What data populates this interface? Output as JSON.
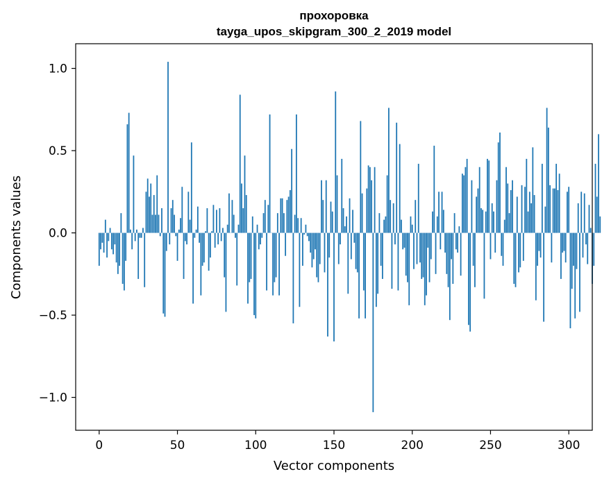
{
  "chart_data": {
    "type": "bar",
    "title_line1": "прохоровка",
    "title_line2": "tayga_upos_skipgram_300_2_2019 model",
    "xlabel": "Vector components",
    "ylabel": "Components values",
    "xlim": [
      -15,
      315
    ],
    "ylim": [
      -1.2,
      1.15
    ],
    "xticks": [
      0,
      50,
      100,
      150,
      200,
      250,
      300
    ],
    "xtick_labels": [
      "0",
      "50",
      "100",
      "150",
      "200",
      "250",
      "300"
    ],
    "yticks": [
      -1.0,
      -0.5,
      0.0,
      0.5,
      1.0
    ],
    "ytick_labels": [
      "−1.0",
      "−0.5",
      "0.0",
      "0.5",
      "1.0"
    ],
    "bar_color": "#1f77b4",
    "values": [
      -0.2,
      -0.1,
      -0.06,
      -0.12,
      0.08,
      -0.15,
      -0.05,
      0.03,
      -0.1,
      -0.13,
      -0.07,
      -0.18,
      -0.25,
      -0.2,
      0.12,
      -0.31,
      -0.35,
      -0.17,
      0.66,
      0.73,
      0.02,
      -0.1,
      0.47,
      -0.05,
      0.02,
      -0.28,
      -0.03,
      -0.03,
      0.03,
      -0.33,
      0.25,
      0.33,
      0.22,
      0.3,
      0.11,
      0.23,
      0.11,
      0.35,
      0.11,
      -0.02,
      0.15,
      -0.49,
      -0.51,
      -0.11,
      1.04,
      -0.07,
      0.15,
      0.2,
      0.11,
      -0.02,
      -0.17,
      0.02,
      0.09,
      0.28,
      -0.28,
      -0.05,
      -0.07,
      0.25,
      0.08,
      0.55,
      -0.43,
      -0.03,
      0.02,
      0.16,
      -0.06,
      -0.38,
      -0.2,
      -0.18,
      0.01,
      0.15,
      -0.23,
      -0.15,
      0.01,
      0.17,
      -0.09,
      0.14,
      -0.07,
      0.15,
      -0.05,
      0.03,
      -0.27,
      -0.48,
      0.05,
      0.24,
      0.0,
      0.2,
      0.11,
      -0.03,
      -0.32,
      0.05,
      0.84,
      0.3,
      0.15,
      0.47,
      0.23,
      -0.43,
      -0.3,
      -0.28,
      0.1,
      -0.5,
      -0.52,
      0.05,
      -0.1,
      -0.07,
      -0.03,
      0.12,
      0.2,
      -0.35,
      0.17,
      0.72,
      0.0,
      -0.38,
      -0.3,
      -0.27,
      0.12,
      -0.38,
      0.21,
      0.21,
      0.12,
      -0.14,
      0.2,
      0.22,
      0.26,
      0.51,
      -0.55,
      0.11,
      0.72,
      0.09,
      -0.45,
      0.09,
      -0.2,
      -0.01,
      0.05,
      -0.02,
      -0.05,
      -0.12,
      -0.21,
      -0.16,
      -0.1,
      -0.27,
      -0.3,
      -0.19,
      0.32,
      0.2,
      -0.24,
      0.32,
      -0.63,
      -0.15,
      0.19,
      0.13,
      -0.66,
      0.86,
      0.35,
      -0.19,
      -0.07,
      0.45,
      0.15,
      0.04,
      0.1,
      -0.37,
      0.21,
      -0.16,
      0.14,
      -0.06,
      -0.22,
      -0.24,
      -0.52,
      0.68,
      0.24,
      -0.35,
      -0.52,
      0.27,
      0.41,
      0.4,
      0.32,
      -1.09,
      0.4,
      -0.45,
      -0.37,
      0.12,
      -0.2,
      -0.28,
      0.08,
      0.1,
      0.35,
      0.76,
      0.2,
      -0.34,
      0.18,
      -0.07,
      0.67,
      -0.35,
      0.54,
      0.08,
      -0.1,
      -0.09,
      -0.26,
      -0.3,
      -0.44,
      0.1,
      0.05,
      -0.22,
      0.2,
      -0.19,
      0.42,
      -0.18,
      -0.28,
      -0.27,
      -0.44,
      -0.38,
      -0.09,
      -0.3,
      -0.16,
      0.13,
      0.53,
      -0.25,
      0.1,
      0.25,
      -0.1,
      0.25,
      0.14,
      -0.12,
      -0.25,
      -0.33,
      -0.53,
      -0.16,
      -0.31,
      0.12,
      -0.1,
      -0.12,
      0.04,
      -0.26,
      0.36,
      0.35,
      0.4,
      0.45,
      -0.56,
      -0.6,
      0.32,
      -0.2,
      -0.33,
      0.22,
      0.27,
      0.4,
      0.15,
      0.14,
      -0.4,
      0.13,
      0.45,
      0.44,
      -0.16,
      0.18,
      0.13,
      -0.12,
      0.32,
      0.55,
      0.61,
      -0.14,
      -0.2,
      0.08,
      0.4,
      0.3,
      0.12,
      0.26,
      0.32,
      -0.31,
      -0.33,
      0.22,
      -0.24,
      -0.21,
      0.29,
      -0.17,
      0.28,
      0.45,
      0.13,
      0.25,
      0.18,
      0.52,
      0.23,
      -0.41,
      -0.2,
      -0.11,
      -0.15,
      0.42,
      -0.54,
      0.16,
      0.76,
      0.64,
      0.29,
      -0.18,
      0.27,
      0.27,
      0.42,
      0.26,
      0.36,
      -0.28,
      -0.12,
      -0.11,
      -0.18,
      0.25,
      0.28,
      -0.58,
      -0.34,
      -0.2,
      -0.52,
      -0.22,
      0.18,
      -0.48,
      0.25,
      -0.15,
      0.24,
      -0.07,
      -0.19,
      0.17,
      0.03,
      -0.31,
      -0.2,
      0.42,
      0.22,
      0.6,
      0.1
    ]
  }
}
